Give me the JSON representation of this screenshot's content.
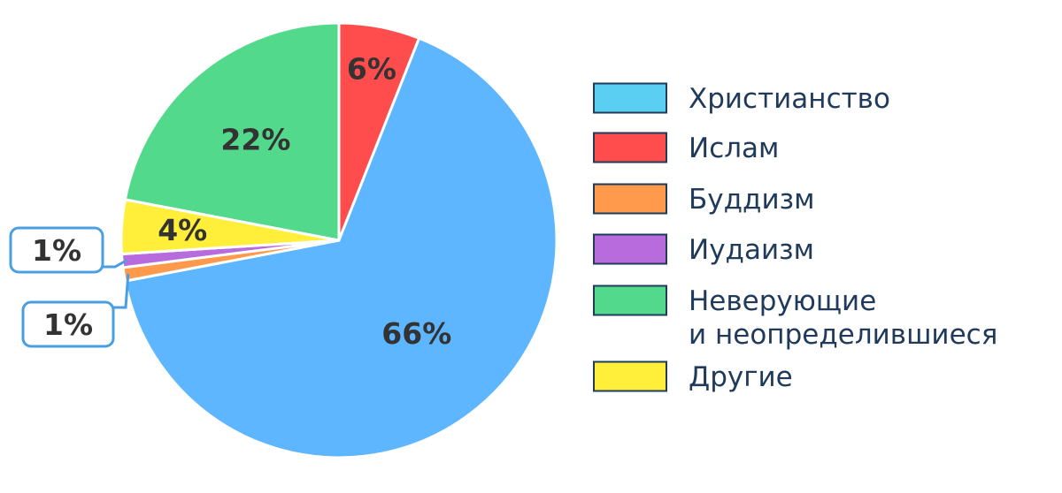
{
  "chart_data": {
    "type": "pie",
    "title": "",
    "start_angle_deg": 0,
    "direction": "clockwise",
    "slices": [
      {
        "label": "Ислам",
        "value": 6,
        "display": "6%",
        "color": "#ff4d4d",
        "label_style": "inside"
      },
      {
        "label": "Христианство",
        "value": 66,
        "display": "66%",
        "color": "#5db6ff",
        "label_style": "inside"
      },
      {
        "label": "Буддизм",
        "value": 1,
        "display": "1%",
        "color": "#ff9a4d",
        "label_style": "callout"
      },
      {
        "label": "Иудаизм",
        "value": 1,
        "display": "1%",
        "color": "#b86bdd",
        "label_style": "callout"
      },
      {
        "label": "Другие",
        "value": 4,
        "display": "4%",
        "color": "#ffee3a",
        "label_style": "inside"
      },
      {
        "label": "Неверующие и неопределившиеся",
        "value": 22,
        "display": "22%",
        "color": "#52d98c",
        "label_style": "inside"
      }
    ],
    "legend": {
      "placement": "right",
      "entries": [
        {
          "lines": [
            "Христианство"
          ],
          "color": "#5bcff2"
        },
        {
          "lines": [
            "Ислам"
          ],
          "color": "#ff4d4d"
        },
        {
          "lines": [
            "Буддизм"
          ],
          "color": "#ff9a4d"
        },
        {
          "lines": [
            "Иудаизм"
          ],
          "color": "#b86bdd"
        },
        {
          "lines": [
            "Неверующие",
            "и неопределившиеся"
          ],
          "color": "#52d98c"
        },
        {
          "lines": [
            "Другие"
          ],
          "color": "#ffee3a"
        }
      ]
    }
  }
}
